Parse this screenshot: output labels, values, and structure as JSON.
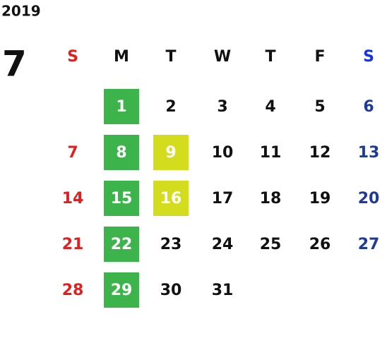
{
  "year": "2019",
  "month": "7",
  "weekdays": [
    "S",
    "M",
    "T",
    "W",
    "T",
    "F",
    "S"
  ],
  "header_colors": [
    "#e0201e",
    "#111111",
    "#111111",
    "#111111",
    "#111111",
    "#111111",
    "#1432e6"
  ],
  "day_colors": [
    "#e0201e",
    "#111111",
    "#111111",
    "#111111",
    "#111111",
    "#111111",
    "#1e3c96"
  ],
  "highlight_text_color": "#ffffff",
  "weeks": [
    [
      null,
      {
        "day": 1,
        "color": "#3cb44b"
      },
      2,
      3,
      4,
      5,
      6
    ],
    [
      7,
      {
        "day": 8,
        "color": "#3cb44b"
      },
      {
        "day": 9,
        "color": "#d4dc1e"
      },
      10,
      11,
      12,
      13
    ],
    [
      14,
      {
        "day": 15,
        "color": "#3cb44b"
      },
      {
        "day": 16,
        "color": "#d4dc1e"
      },
      17,
      18,
      19,
      20
    ],
    [
      21,
      {
        "day": 22,
        "color": "#3cb44b"
      },
      23,
      24,
      25,
      26,
      27
    ],
    [
      28,
      {
        "day": 29,
        "color": "#3cb44b"
      },
      30,
      31
    ]
  ]
}
